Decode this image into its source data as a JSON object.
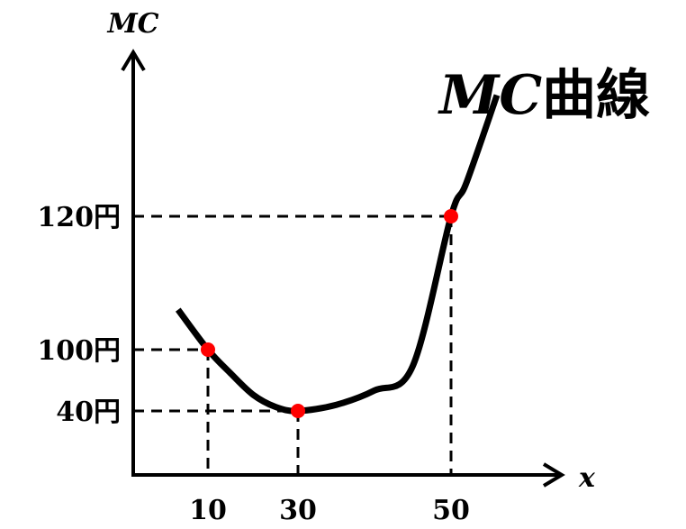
{
  "chart_data": {
    "type": "line",
    "curve_label": {
      "italic_part": "MC",
      "plain_part": "曲線"
    },
    "ylabel": "MC",
    "xlabel": "x",
    "x_ticks": [
      {
        "value": 10,
        "label": "10"
      },
      {
        "value": 30,
        "label": "30"
      },
      {
        "value": 50,
        "label": "50"
      }
    ],
    "y_ticks": [
      {
        "value": 40,
        "label": "40円"
      },
      {
        "value": 100,
        "label": "100円"
      },
      {
        "value": 120,
        "label": "120円"
      }
    ],
    "marked_points": [
      {
        "x": 10,
        "y": 100
      },
      {
        "x": 30,
        "y": 40
      },
      {
        "x": 50,
        "y": 120
      }
    ],
    "curve": {
      "x": [
        6,
        10,
        15,
        20,
        25,
        30,
        35,
        40,
        45,
        50,
        52,
        56
      ],
      "y": [
        106,
        100,
        77,
        56,
        44,
        40,
        46,
        60,
        84,
        120,
        131,
        160
      ]
    },
    "point_color": "#ff0000",
    "line_color": "#000000"
  }
}
